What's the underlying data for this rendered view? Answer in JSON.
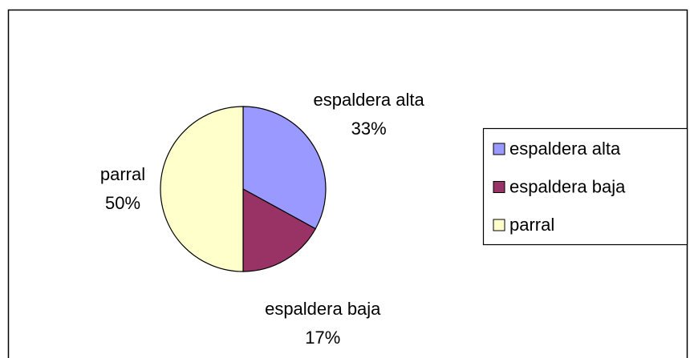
{
  "chart_data": {
    "type": "pie",
    "categories": [
      "espaldera alta",
      "espaldera baja",
      "parral"
    ],
    "values": [
      33,
      17,
      50
    ],
    "value_labels": [
      "33%",
      "17%",
      "50%"
    ],
    "colors": [
      "#9999ff",
      "#993366",
      "#ffffcc"
    ],
    "legend": "right"
  }
}
